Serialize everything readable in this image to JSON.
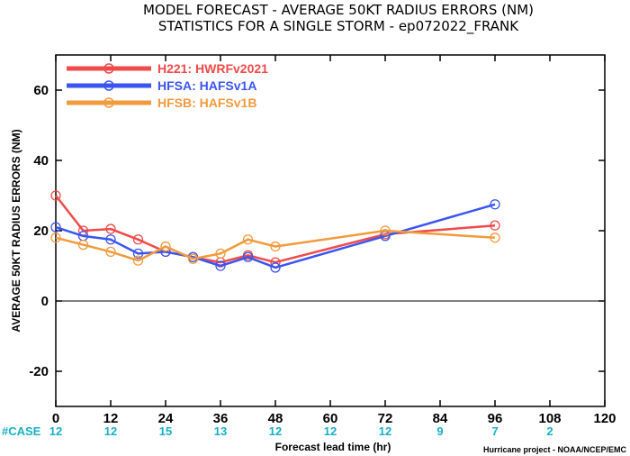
{
  "chart_data": {
    "type": "line",
    "title": "MODEL FORECAST - AVERAGE 50KT RADIUS ERRORS (NM)",
    "subtitle": "STATISTICS FOR A SINGLE STORM - ep072022_FRANK",
    "xlabel": "Forecast lead time (hr)",
    "ylabel": "AVERAGE 50KT RADIUS ERRORS (NM)",
    "xlim": [
      0,
      120
    ],
    "ylim": [
      -30,
      70
    ],
    "xticks": [
      0,
      12,
      24,
      36,
      48,
      60,
      72,
      84,
      96,
      108,
      120
    ],
    "yticks": [
      -20,
      0,
      20,
      40,
      60
    ],
    "grid": false,
    "legend_position": "top-left",
    "case_label": "#CASE",
    "cases": [
      {
        "x": 0,
        "n": "12"
      },
      {
        "x": 12,
        "n": "12"
      },
      {
        "x": 24,
        "n": "15"
      },
      {
        "x": 36,
        "n": "13"
      },
      {
        "x": 48,
        "n": "12"
      },
      {
        "x": 60,
        "n": "12"
      },
      {
        "x": 72,
        "n": "12"
      },
      {
        "x": 84,
        "n": "9"
      },
      {
        "x": 96,
        "n": "7"
      },
      {
        "x": 108,
        "n": "2"
      }
    ],
    "credit": "Hurricane project - NOAA/NCEP/EMC",
    "series": [
      {
        "name": "H221: HWRFv2021",
        "color": "#f04a4a",
        "x": [
          0,
          6,
          12,
          18,
          24,
          30,
          36,
          42,
          48,
          72,
          96
        ],
        "y": [
          30,
          20,
          20.5,
          17.5,
          14,
          12.5,
          11,
          13,
          11,
          19,
          21.5
        ]
      },
      {
        "name": "HFSA: HAFSv1A",
        "color": "#3a55f0",
        "x": [
          0,
          6,
          12,
          18,
          24,
          30,
          36,
          42,
          48,
          72,
          96
        ],
        "y": [
          21,
          18.5,
          17.5,
          13.5,
          14,
          12.5,
          10,
          12.5,
          9.5,
          18.5,
          27.5
        ]
      },
      {
        "name": "HFSB: HAFSv1B",
        "color": "#f29a3c",
        "x": [
          0,
          6,
          12,
          18,
          24,
          30,
          36,
          42,
          48,
          72,
          96
        ],
        "y": [
          18,
          16,
          14,
          11.5,
          15.5,
          12,
          13.5,
          17.5,
          15.5,
          20,
          18
        ]
      }
    ]
  }
}
